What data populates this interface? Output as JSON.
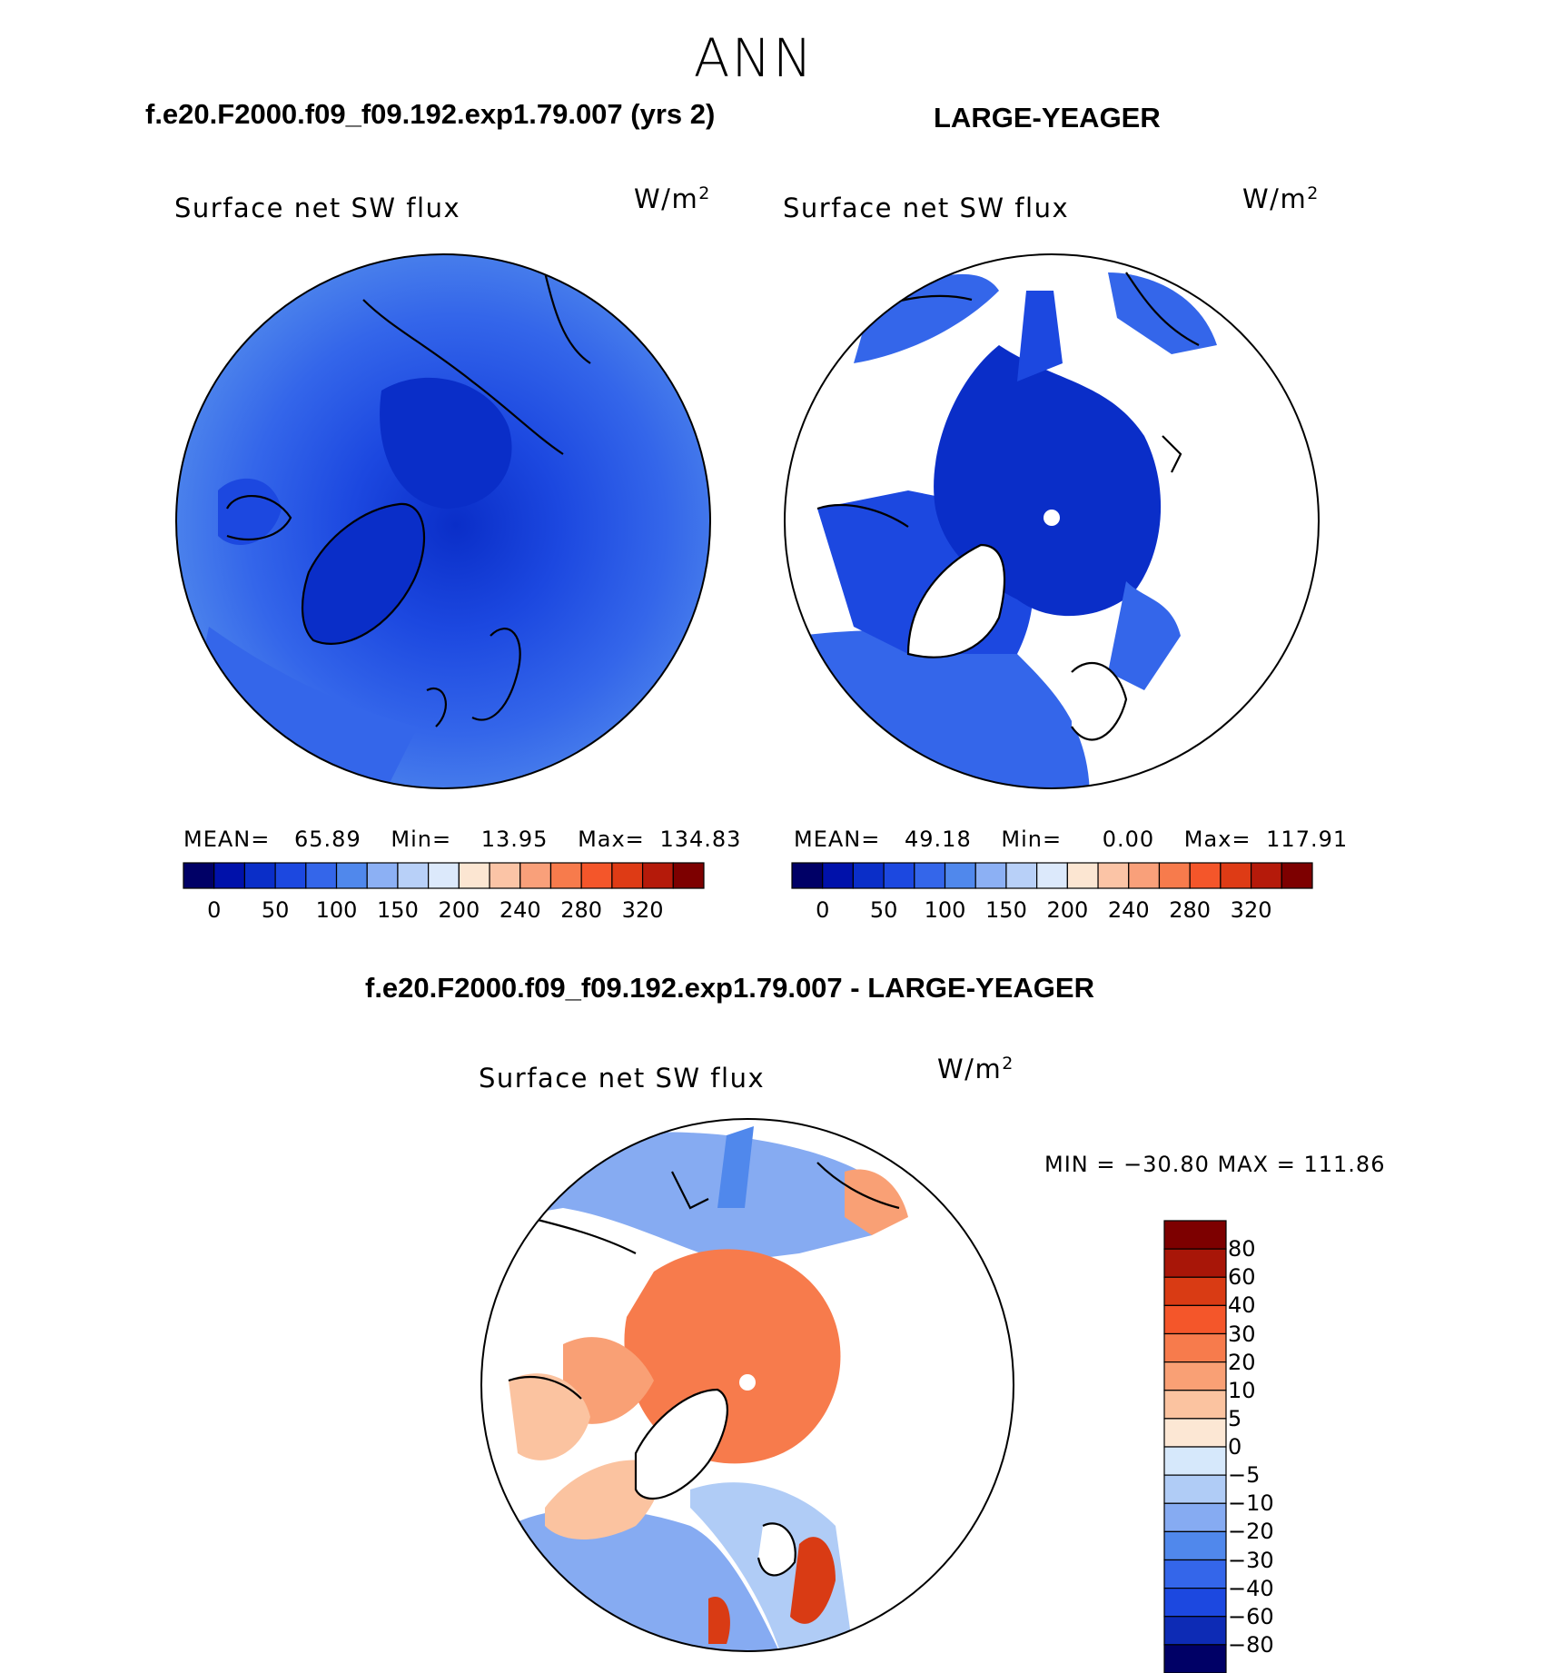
{
  "season": "ANN",
  "colors": {
    "abs": [
      "#000066",
      "#0011aa",
      "#0a2ec8",
      "#1c48e0",
      "#3466ea",
      "#5088ec",
      "#8cb0f4",
      "#b8d0f8",
      "#dce9fb",
      "#fce6d2",
      "#fbc4a6",
      "#f9a07a",
      "#f77b4c",
      "#f4562a",
      "#de3b15",
      "#b51a0a",
      "#7d0000"
    ],
    "diff": [
      "#000066",
      "#0d2bb5",
      "#1c48e0",
      "#3466ea",
      "#5088ec",
      "#86abf2",
      "#b0ccf6",
      "#d6e8fb",
      "#fce7d4",
      "#fbc3a0",
      "#f9a075",
      "#f77b4c",
      "#f4562a",
      "#d93b14",
      "#a81608",
      "#7d0000"
    ]
  },
  "panels": [
    {
      "title": "f.e20.F2000.f09_f09.192.exp1.79.007 (yrs 2)",
      "variable": "Surface net SW flux",
      "units": "W/m",
      "units_sup": "2",
      "stats": {
        "mean_label": "MEAN=",
        "mean": "65.89",
        "min_label": "Min=",
        "min": "13.95",
        "max_label": "Max=",
        "max": "134.83"
      },
      "colorbar_ticks": [
        "0",
        "50",
        "100",
        "150",
        "200",
        "240",
        "280",
        "320"
      ]
    },
    {
      "title": "LARGE-YEAGER",
      "variable": "Surface net SW flux",
      "units": "W/m",
      "units_sup": "2",
      "stats": {
        "mean_label": "MEAN=",
        "mean": "49.18",
        "min_label": "Min=",
        "min": "0.00",
        "max_label": "Max=",
        "max": "117.91"
      },
      "colorbar_ticks": [
        "0",
        "50",
        "100",
        "150",
        "200",
        "240",
        "280",
        "320"
      ]
    },
    {
      "title": "f.e20.F2000.f09_f09.192.exp1.79.007 - LARGE-YEAGER",
      "variable": "Surface net SW flux",
      "units": "W/m",
      "units_sup": "2",
      "stats_text": "MIN = −30.80 MAX = 111.86",
      "colorbar_ticks": [
        "80",
        "60",
        "40",
        "30",
        "20",
        "10",
        "5",
        "0",
        "−5",
        "−10",
        "−20",
        "−30",
        "−40",
        "−60",
        "−80"
      ]
    }
  ]
}
